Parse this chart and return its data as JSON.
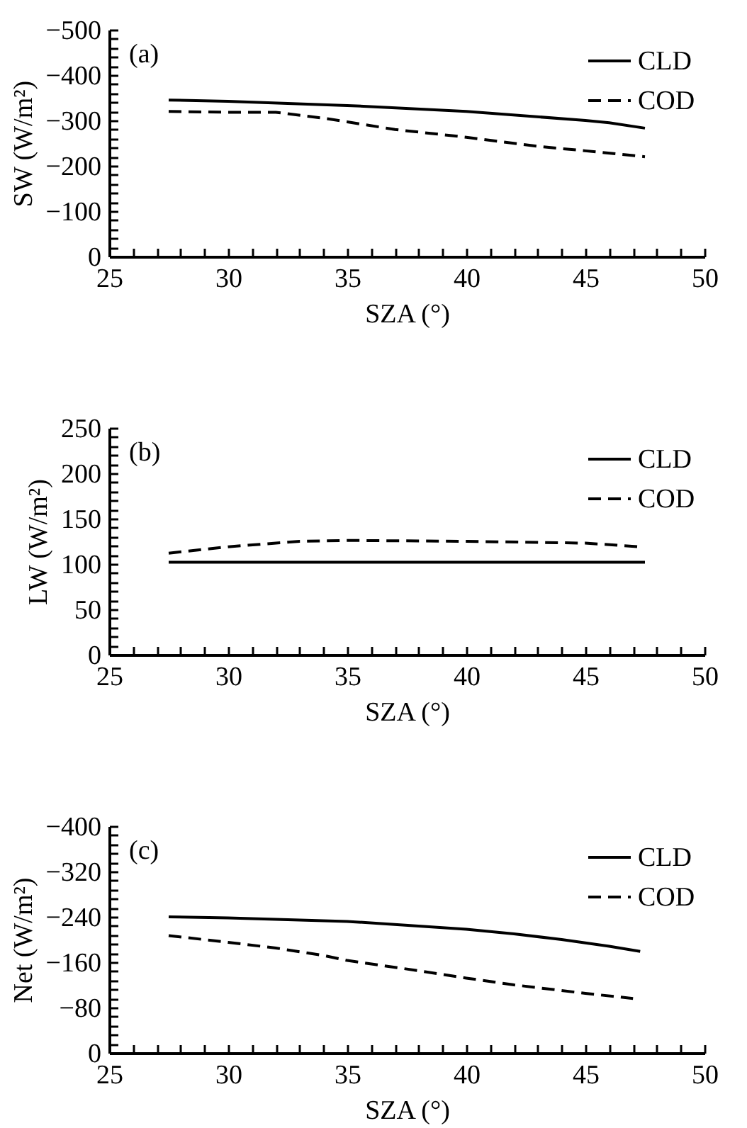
{
  "chart_data": [
    {
      "type": "line",
      "xlabel": "SZA (°)",
      "ylabel": "SW (W/m²)",
      "annotations": [
        "(a)"
      ],
      "legend": "top right",
      "xlim": [
        25,
        50
      ],
      "xticks": [
        25,
        {
          "value": 26,
          "label": null
        },
        {
          "value": 27,
          "label": null
        },
        {
          "value": 28,
          "label": null
        },
        {
          "value": 29,
          "label": null
        },
        30,
        {
          "value": 31,
          "label": null
        },
        {
          "value": 32,
          "label": null
        },
        {
          "value": 33,
          "label": null
        },
        {
          "value": 34,
          "label": null
        },
        35,
        {
          "value": 36,
          "label": null
        },
        {
          "value": 37,
          "label": null
        },
        {
          "value": 38,
          "label": null
        },
        {
          "value": 39,
          "label": null
        },
        40,
        {
          "value": 41,
          "label": null
        },
        {
          "value": 42,
          "label": null
        },
        {
          "value": 43,
          "label": null
        },
        {
          "value": 44,
          "label": null
        },
        45,
        {
          "value": 46,
          "label": null
        },
        {
          "value": 47,
          "label": null
        },
        {
          "value": 48,
          "label": null
        },
        {
          "value": 49,
          "label": null
        },
        50
      ],
      "ylim": [
        0,
        -500
      ],
      "yticks": [
        0,
        {
          "value": -20,
          "label": null
        },
        {
          "value": -40,
          "label": null
        },
        {
          "value": -60,
          "label": null
        },
        {
          "value": -80,
          "label": null
        },
        {
          "value": -100,
          "label": "−100"
        },
        {
          "value": -120,
          "label": null
        },
        {
          "value": -140,
          "label": null
        },
        {
          "value": -160,
          "label": null
        },
        {
          "value": -180,
          "label": null
        },
        {
          "value": -200,
          "label": "−200"
        },
        {
          "value": -220,
          "label": null
        },
        {
          "value": -240,
          "label": null
        },
        {
          "value": -260,
          "label": null
        },
        {
          "value": -280,
          "label": null
        },
        {
          "value": -300,
          "label": "−300"
        },
        {
          "value": -320,
          "label": null
        },
        {
          "value": -340,
          "label": null
        },
        {
          "value": -360,
          "label": null
        },
        {
          "value": -380,
          "label": null
        },
        {
          "value": -400,
          "label": "−400"
        },
        {
          "value": -420,
          "label": null
        },
        {
          "value": -440,
          "label": null
        },
        {
          "value": -460,
          "label": null
        },
        {
          "value": -480,
          "label": null
        },
        {
          "value": -500,
          "label": "−500"
        }
      ],
      "series": [
        {
          "name": "CLD",
          "color": "#000000",
          "line_style": "solid",
          "x": [
            27.5,
            30,
            35,
            40,
            45,
            46,
            47.5
          ],
          "values": [
            -345,
            -342,
            -333,
            -320,
            -300,
            -295,
            -283
          ]
        },
        {
          "name": "COD",
          "color": "#000000",
          "line_style": "dashed",
          "x": [
            27.5,
            30,
            32,
            34,
            35,
            37,
            40,
            43,
            45,
            47.5
          ],
          "values": [
            -320,
            -318,
            -318,
            -305,
            -297,
            -280,
            -263,
            -243,
            -233,
            -220
          ]
        }
      ]
    },
    {
      "type": "line",
      "xlabel": "SZA (°)",
      "ylabel": "LW (W/m²)",
      "annotations": [
        "(b)"
      ],
      "legend": "top right",
      "xlim": [
        25,
        50
      ],
      "xticks": [
        25,
        {
          "value": 26,
          "label": null
        },
        {
          "value": 27,
          "label": null
        },
        {
          "value": 28,
          "label": null
        },
        {
          "value": 29,
          "label": null
        },
        30,
        {
          "value": 31,
          "label": null
        },
        {
          "value": 32,
          "label": null
        },
        {
          "value": 33,
          "label": null
        },
        {
          "value": 34,
          "label": null
        },
        35,
        {
          "value": 36,
          "label": null
        },
        {
          "value": 37,
          "label": null
        },
        {
          "value": 38,
          "label": null
        },
        {
          "value": 39,
          "label": null
        },
        40,
        {
          "value": 41,
          "label": null
        },
        {
          "value": 42,
          "label": null
        },
        {
          "value": 43,
          "label": null
        },
        {
          "value": 44,
          "label": null
        },
        45,
        {
          "value": 46,
          "label": null
        },
        {
          "value": 47,
          "label": null
        },
        {
          "value": 48,
          "label": null
        },
        {
          "value": 49,
          "label": null
        },
        50
      ],
      "ylim": [
        0,
        250
      ],
      "yticks": [
        0,
        {
          "value": 10,
          "label": null
        },
        {
          "value": 20,
          "label": null
        },
        {
          "value": 30,
          "label": null
        },
        {
          "value": 40,
          "label": null
        },
        50,
        {
          "value": 60,
          "label": null
        },
        {
          "value": 70,
          "label": null
        },
        {
          "value": 80,
          "label": null
        },
        {
          "value": 90,
          "label": null
        },
        100,
        {
          "value": 110,
          "label": null
        },
        {
          "value": 120,
          "label": null
        },
        {
          "value": 130,
          "label": null
        },
        {
          "value": 140,
          "label": null
        },
        150,
        {
          "value": 160,
          "label": null
        },
        {
          "value": 170,
          "label": null
        },
        {
          "value": 180,
          "label": null
        },
        {
          "value": 190,
          "label": null
        },
        200,
        {
          "value": 210,
          "label": null
        },
        {
          "value": 220,
          "label": null
        },
        {
          "value": 230,
          "label": null
        },
        {
          "value": 240,
          "label": null
        },
        250
      ],
      "series": [
        {
          "name": "CLD",
          "color": "#000000",
          "line_style": "solid",
          "x": [
            27.5,
            35,
            40,
            47.5
          ],
          "values": [
            102,
            102,
            102,
            102
          ]
        },
        {
          "name": "COD",
          "color": "#000000",
          "line_style": "dashed",
          "x": [
            27.5,
            30,
            33,
            35,
            40,
            45,
            47.3
          ],
          "values": [
            112,
            119,
            125,
            126,
            125,
            123,
            119
          ]
        }
      ]
    },
    {
      "type": "line",
      "xlabel": "SZA (°)",
      "ylabel": "Net (W/m²)",
      "annotations": [
        "(c)"
      ],
      "legend": "top right",
      "xlim": [
        25,
        50
      ],
      "xticks": [
        25,
        {
          "value": 26,
          "label": null
        },
        {
          "value": 27,
          "label": null
        },
        {
          "value": 28,
          "label": null
        },
        {
          "value": 29,
          "label": null
        },
        30,
        {
          "value": 31,
          "label": null
        },
        {
          "value": 32,
          "label": null
        },
        {
          "value": 33,
          "label": null
        },
        {
          "value": 34,
          "label": null
        },
        35,
        {
          "value": 36,
          "label": null
        },
        {
          "value": 37,
          "label": null
        },
        {
          "value": 38,
          "label": null
        },
        {
          "value": 39,
          "label": null
        },
        40,
        {
          "value": 41,
          "label": null
        },
        {
          "value": 42,
          "label": null
        },
        {
          "value": 43,
          "label": null
        },
        {
          "value": 44,
          "label": null
        },
        45,
        {
          "value": 46,
          "label": null
        },
        {
          "value": 47,
          "label": null
        },
        {
          "value": 48,
          "label": null
        },
        {
          "value": 49,
          "label": null
        },
        50
      ],
      "ylim": [
        0,
        -400
      ],
      "yticks": [
        0,
        {
          "value": -16,
          "label": null
        },
        {
          "value": -32,
          "label": null
        },
        {
          "value": -48,
          "label": null
        },
        {
          "value": -64,
          "label": null
        },
        {
          "value": -80,
          "label": "−80"
        },
        {
          "value": -96,
          "label": null
        },
        {
          "value": -112,
          "label": null
        },
        {
          "value": -128,
          "label": null
        },
        {
          "value": -144,
          "label": null
        },
        {
          "value": -160,
          "label": "−160"
        },
        {
          "value": -176,
          "label": null
        },
        {
          "value": -192,
          "label": null
        },
        {
          "value": -208,
          "label": null
        },
        {
          "value": -224,
          "label": null
        },
        {
          "value": -240,
          "label": "−240"
        },
        {
          "value": -256,
          "label": null
        },
        {
          "value": -272,
          "label": null
        },
        {
          "value": -288,
          "label": null
        },
        {
          "value": -304,
          "label": null
        },
        {
          "value": -320,
          "label": "−320"
        },
        {
          "value": -336,
          "label": null
        },
        {
          "value": -352,
          "label": null
        },
        {
          "value": -368,
          "label": null
        },
        {
          "value": -384,
          "label": null
        },
        {
          "value": -400,
          "label": "−400"
        }
      ],
      "series": [
        {
          "name": "CLD",
          "color": "#000000",
          "line_style": "solid",
          "x": [
            27.5,
            30,
            35,
            40,
            42,
            44,
            46,
            47.3
          ],
          "values": [
            -240,
            -238,
            -232,
            -218,
            -210,
            -200,
            -188,
            -179
          ]
        },
        {
          "name": "COD",
          "color": "#000000",
          "line_style": "dashed",
          "x": [
            27.5,
            30,
            32,
            34,
            35,
            38,
            40,
            42,
            45,
            47
          ],
          "values": [
            -207,
            -195,
            -185,
            -172,
            -163,
            -145,
            -132,
            -120,
            -105,
            -96
          ]
        }
      ]
    }
  ]
}
